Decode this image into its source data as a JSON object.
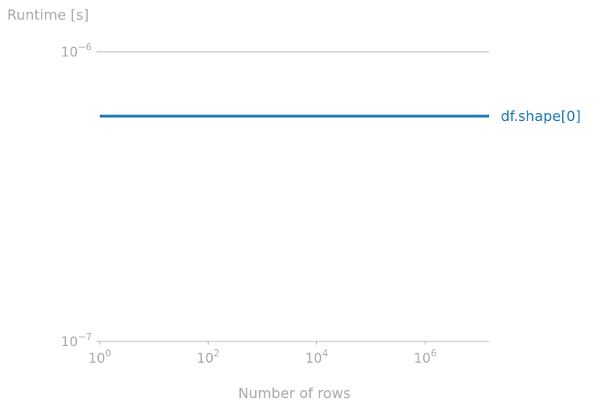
{
  "chart_data": {
    "type": "line",
    "ylabel": "Runtime [s]",
    "xlabel": "Number of rows",
    "x_scale": "log",
    "y_scale": "log",
    "xlim": [
      1,
      15000000
    ],
    "ylim": [
      1e-07,
      1e-06
    ],
    "x_ticks": [
      {
        "value": 1,
        "base": "10",
        "exp": "0"
      },
      {
        "value": 100,
        "base": "10",
        "exp": "2"
      },
      {
        "value": 10000,
        "base": "10",
        "exp": "4"
      },
      {
        "value": 1000000,
        "base": "10",
        "exp": "6"
      }
    ],
    "y_ticks": [
      {
        "value": 1e-06,
        "base": "10",
        "exp": "−6"
      },
      {
        "value": 1e-07,
        "base": "10",
        "exp": "−7"
      }
    ],
    "grid": "horizontal lines at major y ticks",
    "legend": "inline label at right end of line",
    "series": [
      {
        "name": "df.shape[0]",
        "color": "#1f77b4",
        "x": [
          1,
          15000000
        ],
        "y": [
          6e-07,
          6e-07
        ]
      }
    ]
  },
  "colors": {
    "axis_text": "#a9a9b2",
    "grid": "#b0b0b0"
  }
}
